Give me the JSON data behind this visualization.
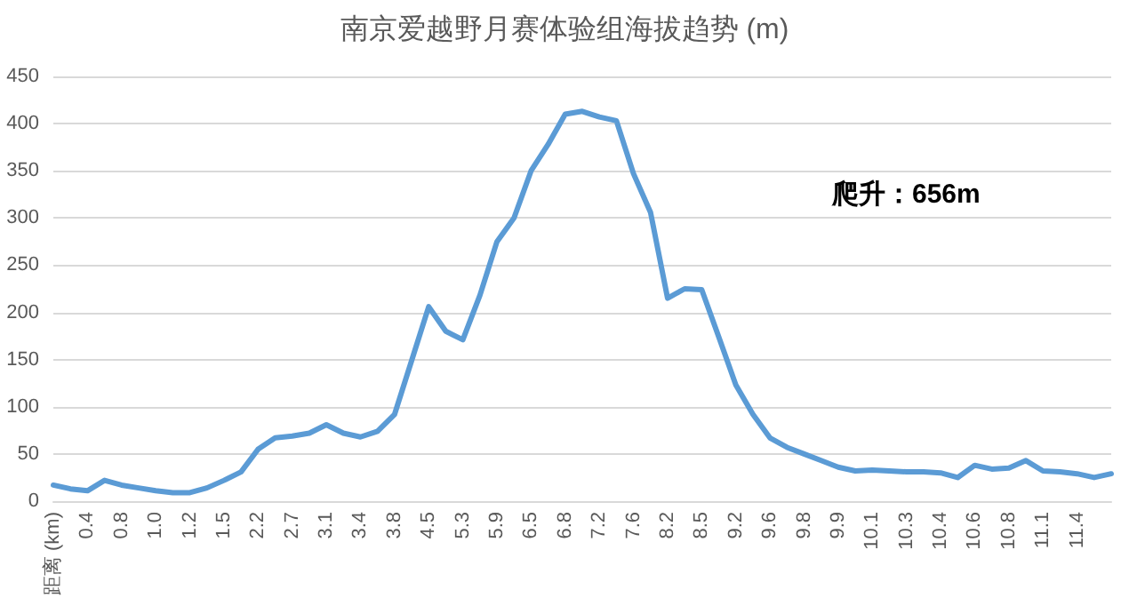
{
  "chart_data": {
    "type": "line",
    "title": "南京爱越野月赛体验组海拔趋势 (m)",
    "categories": [
      "距离 (km)",
      null,
      "0.4",
      null,
      "0.8",
      null,
      "1.0",
      null,
      "1.2",
      null,
      "1.5",
      null,
      "2.2",
      null,
      "2.7",
      null,
      "3.1",
      null,
      "3.4",
      null,
      "3.8",
      null,
      "4.5",
      null,
      "5.3",
      null,
      "5.9",
      null,
      "6.5",
      null,
      "6.8",
      null,
      "7.2",
      null,
      "7.6",
      null,
      "8.2",
      null,
      "8.5",
      null,
      "9.2",
      null,
      "9.6",
      null,
      "9.8",
      null,
      "9.9",
      null,
      "10.1",
      null,
      "10.3",
      null,
      "10.4",
      null,
      "10.6",
      null,
      "10.8",
      null,
      "11.1",
      null,
      "11.4",
      null,
      null
    ],
    "series": [
      {
        "color": "#5b9bd5",
        "values": [
          17,
          13,
          11,
          22,
          17,
          14,
          11,
          9,
          9,
          14,
          22,
          31,
          55,
          67,
          69,
          72,
          81,
          72,
          68,
          74,
          92,
          149,
          206,
          180,
          171,
          218,
          275,
          300,
          350,
          378,
          410,
          413,
          407,
          403,
          347,
          306,
          215,
          225,
          224,
          174,
          123,
          92,
          67,
          57,
          50,
          43,
          36,
          32,
          33,
          32,
          31,
          31,
          30,
          25,
          38,
          34,
          35,
          43,
          32,
          31,
          29,
          25,
          29
        ]
      }
    ],
    "ylim": [
      0,
      450
    ],
    "yticks": [
      0,
      50,
      100,
      150,
      200,
      250,
      300,
      350,
      400,
      450
    ],
    "grid": "y",
    "marker": "none",
    "line_style": "solid",
    "annotations": [
      "爬升：656m"
    ]
  }
}
